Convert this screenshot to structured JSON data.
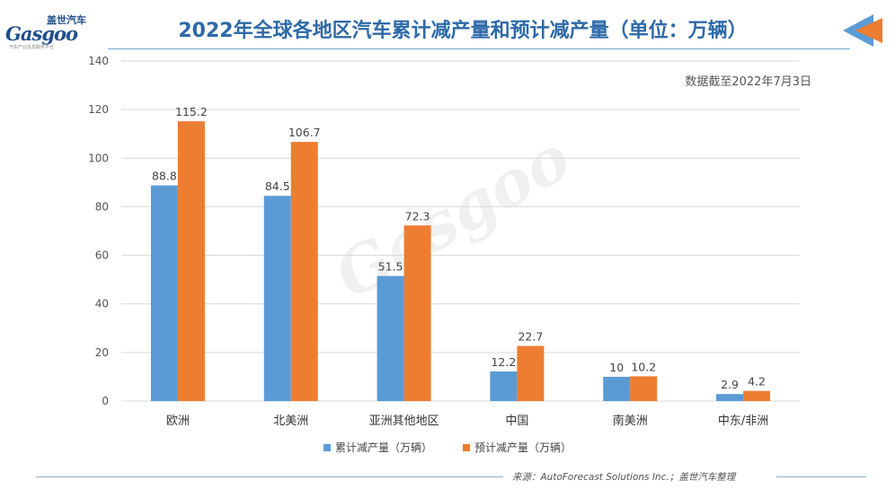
{
  "header": {
    "logo_cn": "盖世汽车",
    "logo_en": "Gasgoo",
    "logo_tag": "汽车产业信息服务平台",
    "title": "2022年全球各地区汽车累计减产量和预计减产量（单位：万辆）",
    "note": "数据截至2022年7月3日"
  },
  "footer": {
    "source": "来源：AutoForecast Solutions Inc.；盖世汽车整理"
  },
  "colors": {
    "series1": "#5b9bd5",
    "series2": "#ed7d31",
    "title": "#2e6aa8",
    "grid": "#d9d9d9"
  },
  "chart_data": {
    "type": "bar",
    "title": "2022年全球各地区汽车累计减产量和预计减产量（单位：万辆）",
    "categories": [
      "欧洲",
      "北美洲",
      "亚洲其他地区",
      "中国",
      "南美洲",
      "中东/非洲"
    ],
    "series": [
      {
        "name": "累计减产量（万辆）",
        "values": [
          88.8,
          84.5,
          51.5,
          12.2,
          10,
          2.9
        ]
      },
      {
        "name": "预计减产量（万辆）",
        "values": [
          115.2,
          106.7,
          72.3,
          22.7,
          10.2,
          4.2
        ]
      }
    ],
    "yticks": [
      0,
      20,
      40,
      60,
      80,
      100,
      120,
      140
    ],
    "ylim": [
      0,
      140
    ],
    "grid": true,
    "legend_position": "bottom",
    "xlabel": "",
    "ylabel": ""
  }
}
